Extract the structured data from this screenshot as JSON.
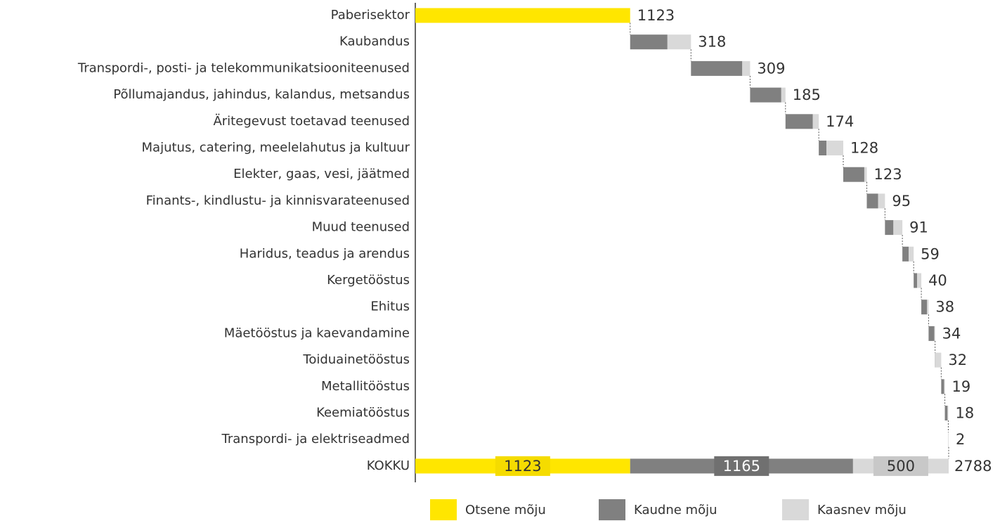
{
  "chart_data": {
    "type": "waterfall_bar",
    "categories": [
      "Paberisektor",
      "Kaubandus",
      "Transpordi-, posti- ja telekommunikatsiooniteenused",
      "Põllumajandus, jahindus, kalandus, metsandus",
      "Äritegevust toetavad teenused",
      "Majutus, catering, meelelahutus ja kultuur",
      "Elekter, gaas, vesi, jäätmed",
      "Finants-, kindlustu- ja kinnisvarateenused",
      "Muud teenused",
      "Haridus, teadus ja arendus",
      "Kergetööstus",
      "Ehitus",
      "Mäetööstus ja kaevandamine",
      "Toiduainetööstus",
      "Metallitööstus",
      "Keemiatööstus",
      "Transpordi- ja elektriseadmed"
    ],
    "series": [
      {
        "name": "Otsene mõju",
        "color": "#ffe600",
        "values": [
          1123,
          null,
          null,
          null,
          null,
          null,
          null,
          null,
          null,
          null,
          null,
          null,
          null,
          null,
          null,
          null,
          null
        ]
      },
      {
        "name": "Kaudne mõju",
        "color": "#808080",
        "values": [
          null,
          195,
          268,
          163,
          143,
          40,
          110,
          59,
          44,
          33,
          18,
          30,
          30,
          2,
          15,
          14,
          1
        ]
      },
      {
        "name": "Kaasnev mõju",
        "color": "#d9d9d9",
        "values": [
          null,
          123,
          41,
          22,
          31,
          88,
          13,
          36,
          47,
          26,
          22,
          8,
          4,
          30,
          4,
          4,
          1
        ]
      }
    ],
    "totals": [
      1123,
      318,
      309,
      185,
      174,
      128,
      123,
      95,
      91,
      59,
      40,
      38,
      34,
      32,
      19,
      18,
      2
    ],
    "total_row": {
      "label": "KOKKU",
      "values": [
        1123,
        1165,
        500
      ],
      "total": 2788
    }
  }
}
